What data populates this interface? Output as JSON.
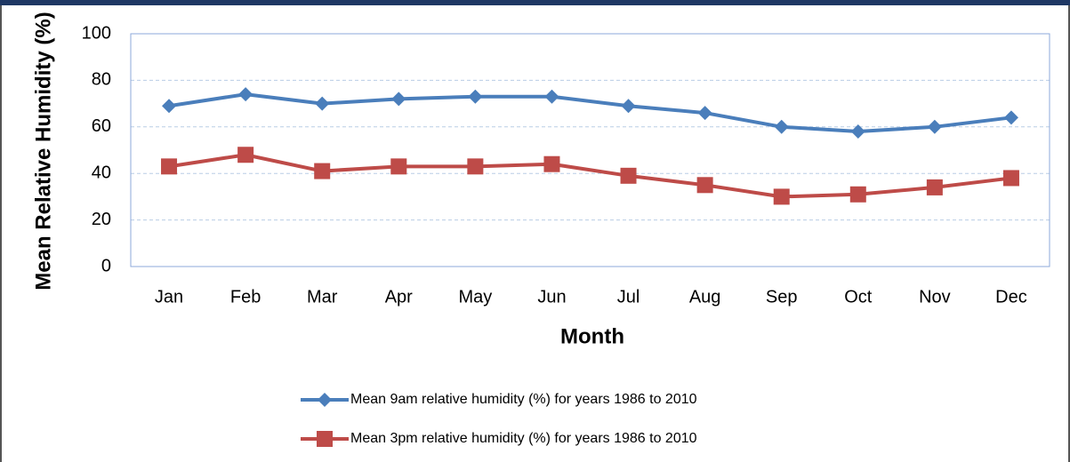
{
  "chart_data": {
    "type": "line",
    "x_label": "Month",
    "y_label": "Mean Relative Humidity (%)",
    "categories": [
      "Jan",
      "Feb",
      "Mar",
      "Apr",
      "May",
      "Jun",
      "Jul",
      "Aug",
      "Sep",
      "Oct",
      "Nov",
      "Dec"
    ],
    "series": [
      {
        "name": "Mean 9am relative humidity (%) for years 1986 to 2010",
        "color": "#4a7ebb",
        "marker": "diamond",
        "values": [
          69,
          74,
          70,
          72,
          73,
          73,
          69,
          66,
          60,
          58,
          60,
          64
        ]
      },
      {
        "name": "Mean 3pm relative humidity (%) for years 1986 to 2010",
        "color": "#be4b48",
        "marker": "square",
        "values": [
          43,
          48,
          41,
          43,
          43,
          44,
          39,
          35,
          30,
          31,
          34,
          38
        ]
      }
    ],
    "ylim": [
      0,
      100
    ],
    "yticks": [
      0,
      20,
      40,
      60,
      80,
      100
    ],
    "grid": true,
    "legend": "bottom"
  }
}
